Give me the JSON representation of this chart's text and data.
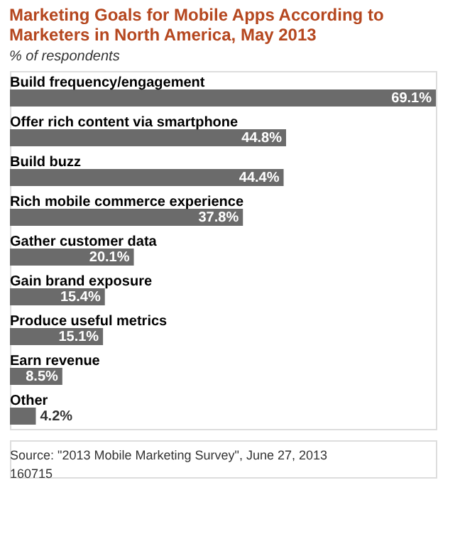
{
  "chart_data": {
    "type": "bar",
    "orientation": "horizontal",
    "title": "Marketing Goals for Mobile Apps According to Marketers in North America, May 2013",
    "subtitle": "% of respondents",
    "categories": [
      "Build frequency/engagement",
      "Offer rich content via smartphone",
      "Build buzz",
      "Rich mobile commerce experience",
      "Gather customer data",
      "Gain brand exposure",
      "Produce useful metrics",
      "Earn revenue",
      "Other"
    ],
    "values": [
      69.1,
      44.8,
      44.4,
      37.8,
      20.1,
      15.4,
      15.1,
      8.5,
      4.2
    ],
    "value_labels": [
      "69.1%",
      "44.8%",
      "44.4%",
      "37.8%",
      "20.1%",
      "15.4%",
      "15.1%",
      "8.5%",
      "4.2%"
    ],
    "color": "#6b6b6b",
    "annotations": [
      "Source: \"2013 Mobile Marketing Survey\", June 27, 2013",
      "160715"
    ]
  }
}
